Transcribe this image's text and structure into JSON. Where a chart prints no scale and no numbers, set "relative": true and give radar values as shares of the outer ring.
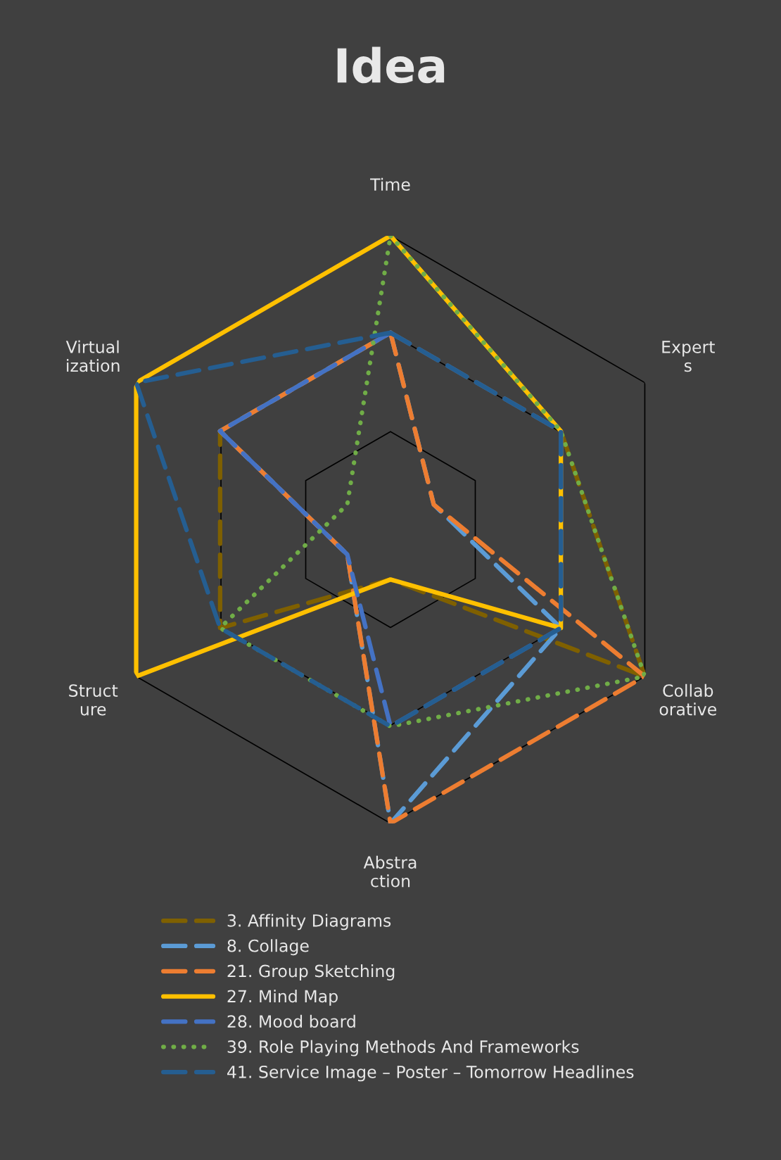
{
  "chart_data": {
    "type": "radar",
    "title": "Idea",
    "relative": true,
    "grid": true,
    "legend": "bottom",
    "categories": [
      "Time",
      "Expert\ns",
      "Collab\norative",
      "Abstra\nction",
      "Struct\nure",
      "Virtual\nization"
    ],
    "series": [
      {
        "name": "3. Affinity Diagrams",
        "color": "#7f6000",
        "line_style": "dashed",
        "values": [
          0.67,
          0.67,
          1,
          0.17,
          0.67,
          0.67
        ]
      },
      {
        "name": "8. Collage",
        "color": "#5b9bd5",
        "line_style": "dashed",
        "values": [
          0.67,
          0.17,
          0.67,
          1,
          0.17,
          0.67
        ]
      },
      {
        "name": "21. Group Sketching",
        "color": "#ed7d31",
        "line_style": "dashed",
        "values": [
          0.67,
          0.17,
          1,
          1,
          0.17,
          0.67
        ]
      },
      {
        "name": "27. Mind Map",
        "color": "#ffc000",
        "line_style": "solid",
        "values": [
          1,
          0.67,
          0.67,
          0.17,
          1,
          1
        ]
      },
      {
        "name": "28. Mood board",
        "color": "#4472c4",
        "line_style": "dashed",
        "values": [
          0.67,
          0.67,
          0.67,
          0.67,
          0.17,
          0.67
        ]
      },
      {
        "name": "39. Role Playing Methods And Frameworks",
        "color": "#70ad47",
        "line_style": "dotted",
        "values": [
          1,
          0.67,
          1,
          0.67,
          0.67,
          0.17
        ]
      },
      {
        "name": "41. Service Image – Poster – Tomorrow Headlines",
        "color": "#255e91",
        "line_style": "dashed",
        "values": [
          0.67,
          0.67,
          0.67,
          0.67,
          0.67,
          1
        ]
      }
    ]
  }
}
